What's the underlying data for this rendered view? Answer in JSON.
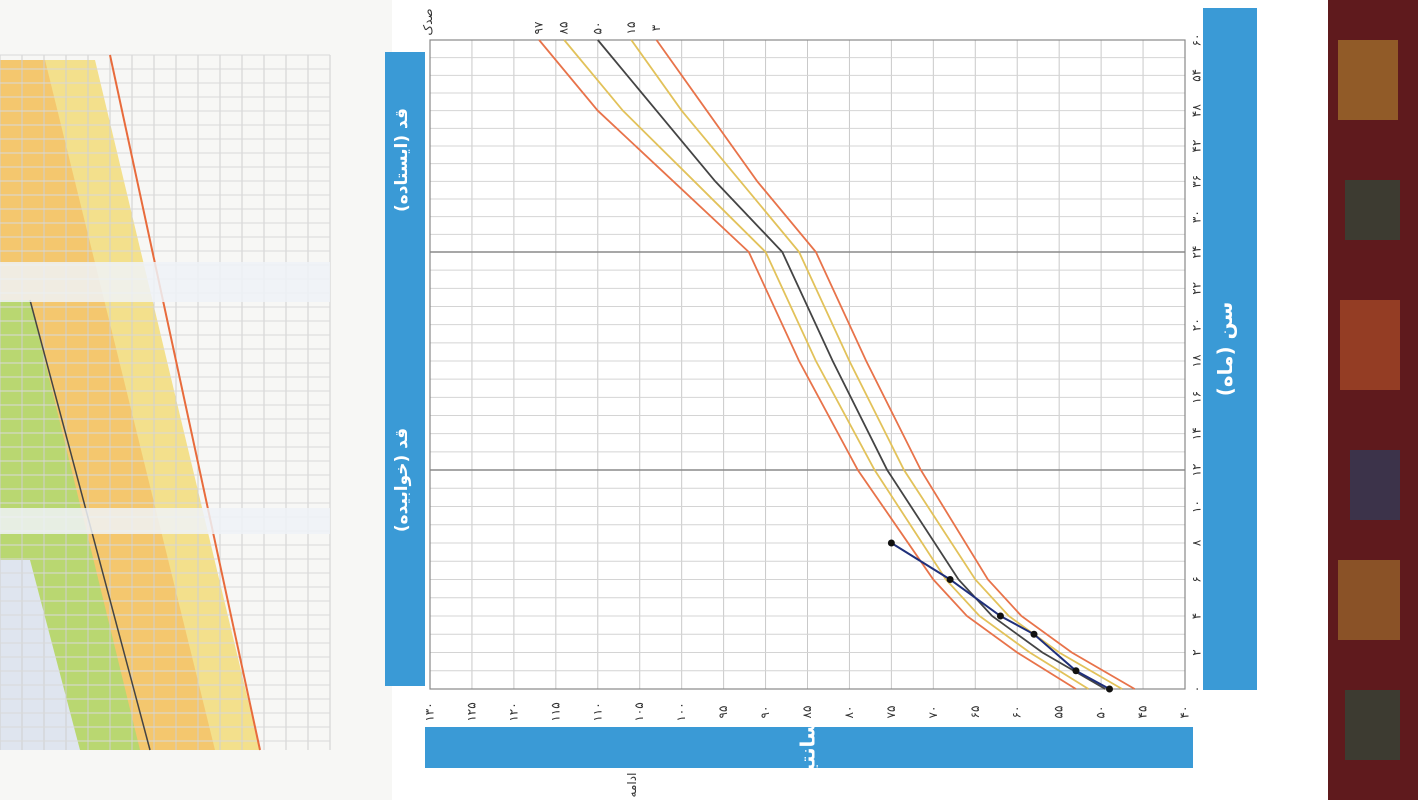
{
  "chart_data": {
    "type": "line",
    "title": "",
    "labels": {
      "y_title": "قد (سانتیمتر)",
      "x_title": "سن (ماه)",
      "band_lying": "قد (خوابیده)",
      "band_standing": "قد (ایستاده)",
      "bottom_note": "ادامه",
      "percentile_header": "صدک"
    },
    "y_ticks": [
      "۴۰",
      "۴۵",
      "۵۰",
      "۵۵",
      "۶۰",
      "۶۵",
      "۷۰",
      "۷۵",
      "۸۰",
      "۸۵",
      "۹۰",
      "۹۵",
      "۱۰۰",
      "۱۰۵",
      "۱۱۰",
      "۱۱۵",
      "۱۲۰",
      "۱۲۵",
      "۱۳۰"
    ],
    "x_ticks": [
      "۰",
      "۲",
      "۴",
      "۶",
      "۸",
      "۱۰",
      "۱۲",
      "۱۴",
      "۱۶",
      "۱۸",
      "۲۰",
      "۲۲",
      "۲۴",
      "۳۰",
      "۳۶",
      "۴۲",
      "۴۸",
      "۵۴",
      "۶۰"
    ],
    "x_range": [
      0,
      60
    ],
    "y_range": [
      40,
      130
    ],
    "percentile_labels": [
      "۹۷",
      "۸۵",
      "۵۰",
      "۱۵",
      "۳"
    ],
    "series": [
      {
        "name": "۹۷",
        "color": "#e8734a",
        "x": [
          0,
          2,
          4,
          6,
          12,
          18,
          24,
          36,
          48,
          60
        ],
        "y": [
          53,
          60,
          66,
          70,
          79,
          86,
          92,
          101,
          110,
          117
        ]
      },
      {
        "name": "۸۵",
        "color": "#e2c25a",
        "x": [
          0,
          2,
          4,
          6,
          12,
          18,
          24,
          36,
          48,
          60
        ],
        "y": [
          51.5,
          58.5,
          64.5,
          68.5,
          77,
          84,
          90,
          98.5,
          107,
          114
        ]
      },
      {
        "name": "۵۰",
        "color": "#444444",
        "x": [
          0,
          2,
          4,
          6,
          12,
          18,
          24,
          36,
          48,
          60
        ],
        "y": [
          49.5,
          57,
          63,
          67,
          75.5,
          82,
          88,
          96,
          103,
          110
        ]
      },
      {
        "name": "۱۵",
        "color": "#e2c25a",
        "x": [
          0,
          2,
          4,
          6,
          12,
          18,
          24,
          36,
          48,
          60
        ],
        "y": [
          47.5,
          55,
          61,
          65,
          73.5,
          80,
          86,
          93,
          100,
          106
        ]
      },
      {
        "name": "۳",
        "color": "#e8734a",
        "x": [
          0,
          2,
          4,
          6,
          12,
          18,
          24,
          36,
          48,
          60
        ],
        "y": [
          46,
          53.5,
          59.5,
          63.5,
          71.5,
          78,
          84,
          91,
          97,
          103
        ]
      },
      {
        "name": "",
        "color": "#1f2f7a",
        "x": [
          0,
          1,
          3,
          4,
          6,
          8
        ],
        "y": [
          49,
          53,
          58,
          62,
          68,
          75
        ]
      }
    ],
    "grid": true,
    "legend": "none"
  },
  "colors": {
    "background": "#e9ecef",
    "paper": "#ffffff",
    "banner_blue": "#3a9ad6",
    "grid": "#c9c9c9",
    "carpet_red": "#6e1f23"
  }
}
